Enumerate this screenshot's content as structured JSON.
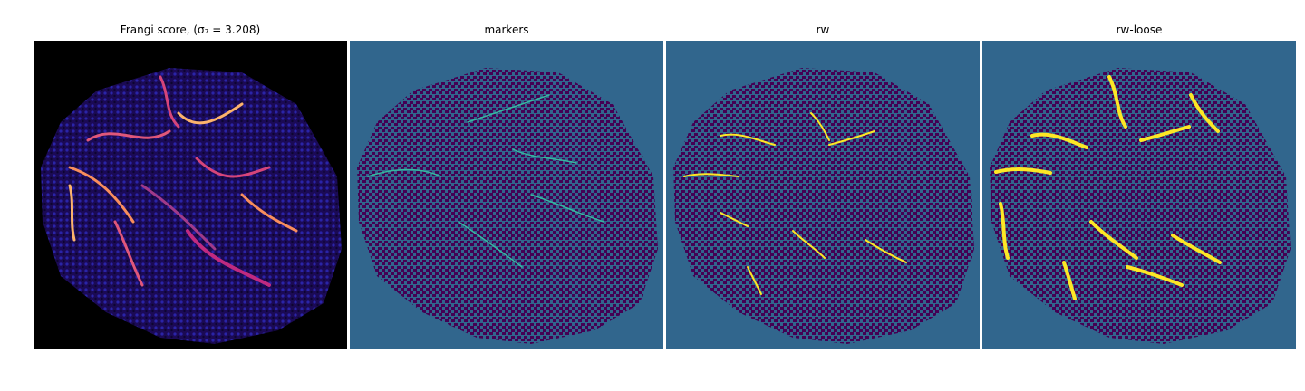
{
  "panels": [
    {
      "title": "Frangi score, (σ₇ = 3.208)",
      "image": "frangi-score-image",
      "background": "#000000",
      "tissue": "#1b0a55",
      "highlight": "#f98e5c"
    },
    {
      "title": "markers",
      "image": "markers-image",
      "background": "#31668d",
      "tissue": "#440154",
      "highlight": "#36b8a0"
    },
    {
      "title": "rw",
      "image": "rw-segmentation-image",
      "background": "#31668d",
      "tissue": "#440154",
      "highlight": "#fde725"
    },
    {
      "title": "rw-loose",
      "image": "rw-loose-segmentation-image",
      "background": "#31668d",
      "tissue": "#440154",
      "highlight": "#fde725"
    }
  ]
}
